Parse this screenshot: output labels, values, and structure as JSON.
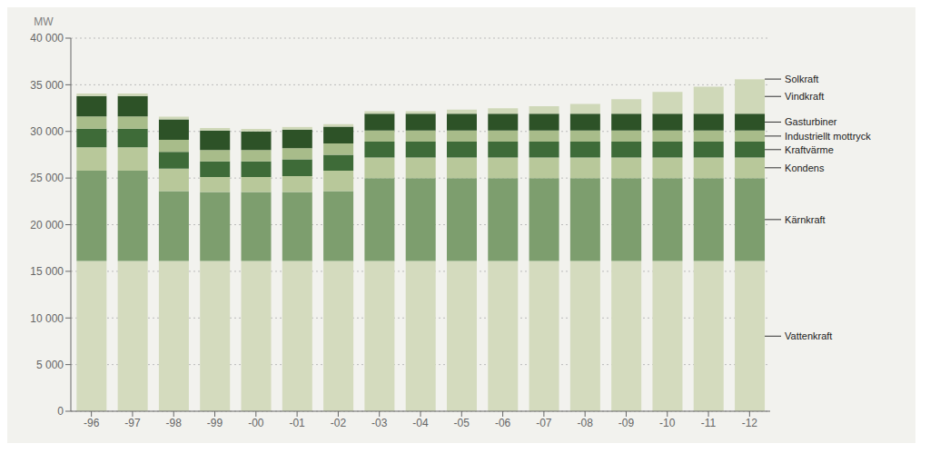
{
  "chart_data": {
    "type": "bar",
    "stacked": true,
    "ylabel": "MW",
    "categories": [
      "-96",
      "-97",
      "-98",
      "-99",
      "-00",
      "-01",
      "-02",
      "-03",
      "-04",
      "-05",
      "-06",
      "-07",
      "-08",
      "-09",
      "-10",
      "-11",
      "-12"
    ],
    "series": [
      {
        "name": "Vattenkraft",
        "color": "#d4dbbe",
        "values": [
          16100,
          16100,
          16100,
          16100,
          16100,
          16100,
          16100,
          16100,
          16100,
          16100,
          16100,
          16100,
          16100,
          16100,
          16100,
          16100,
          16100
        ]
      },
      {
        "name": "Kärnkraft",
        "color": "#7d9e6e",
        "values": [
          9700,
          9700,
          7500,
          7400,
          7400,
          7400,
          7500,
          8900,
          8900,
          8900,
          8900,
          8900,
          8900,
          8900,
          8900,
          8900,
          8900
        ]
      },
      {
        "name": "Kondens",
        "color": "#b8c89a",
        "values": [
          2500,
          2500,
          2400,
          1600,
          1600,
          1700,
          2200,
          2200,
          2200,
          2200,
          2200,
          2200,
          2200,
          2200,
          2200,
          2200,
          2200
        ]
      },
      {
        "name": "Kraftvärme",
        "color": "#3e6b38",
        "values": [
          2000,
          2000,
          1800,
          1700,
          1700,
          1800,
          1700,
          1700,
          1700,
          1700,
          1700,
          1700,
          1700,
          1700,
          1700,
          1700,
          1700
        ]
      },
      {
        "name": "Industriellt mottryck",
        "color": "#a8bc8a",
        "values": [
          1300,
          1300,
          1300,
          1200,
          1200,
          1200,
          1200,
          1200,
          1200,
          1200,
          1200,
          1200,
          1200,
          1200,
          1200,
          1200,
          1200
        ]
      },
      {
        "name": "Gasturbiner",
        "color": "#2d5227",
        "values": [
          2200,
          2200,
          2200,
          2100,
          2000,
          2000,
          1800,
          1800,
          1800,
          1800,
          1800,
          1800,
          1800,
          1800,
          1800,
          1800,
          1800
        ]
      },
      {
        "name": "Vindkraft",
        "color": "#cfd8b8",
        "values": [
          270,
          270,
          270,
          270,
          270,
          270,
          270,
          270,
          270,
          440,
          570,
          790,
          1040,
          1560,
          2330,
          2900,
          3700
        ]
      },
      {
        "name": "Solkraft",
        "color": "#e5e9d8",
        "values": [
          5,
          5,
          5,
          5,
          5,
          5,
          5,
          5,
          5,
          5,
          5,
          5,
          5,
          5,
          5,
          5,
          20
        ]
      }
    ],
    "ylim": [
      0,
      40000
    ],
    "yticks": [
      0,
      {
        "value": 5000,
        "label": "5 000"
      },
      {
        "value": 10000,
        "label": "10 000"
      },
      {
        "value": 15000,
        "label": "15 000"
      },
      {
        "value": 20000,
        "label": "20 000"
      },
      {
        "value": 25000,
        "label": "25 000"
      },
      {
        "value": 30000,
        "label": "30 000"
      },
      {
        "value": 35000,
        "label": "35 000"
      },
      {
        "value": 40000,
        "label": "40 000"
      }
    ],
    "grid": true,
    "annotations": [
      {
        "text": "Vattenkraft",
        "series": "Vattenkraft"
      },
      {
        "text": "Kärnkraft",
        "series": "Kärnkraft"
      },
      {
        "text": "Kondens",
        "series": "Kondens"
      },
      {
        "text": "Kraftvärme",
        "series": "Kraftvärme"
      },
      {
        "text": "Industriellt mottryck",
        "series": "Industriellt mottryck"
      },
      {
        "text": "Gasturbiner",
        "series": "Gasturbiner"
      },
      {
        "text": "Vindkraft",
        "series": "Vindkraft"
      },
      {
        "text": "Solkraft",
        "series": "Solkraft"
      }
    ]
  }
}
